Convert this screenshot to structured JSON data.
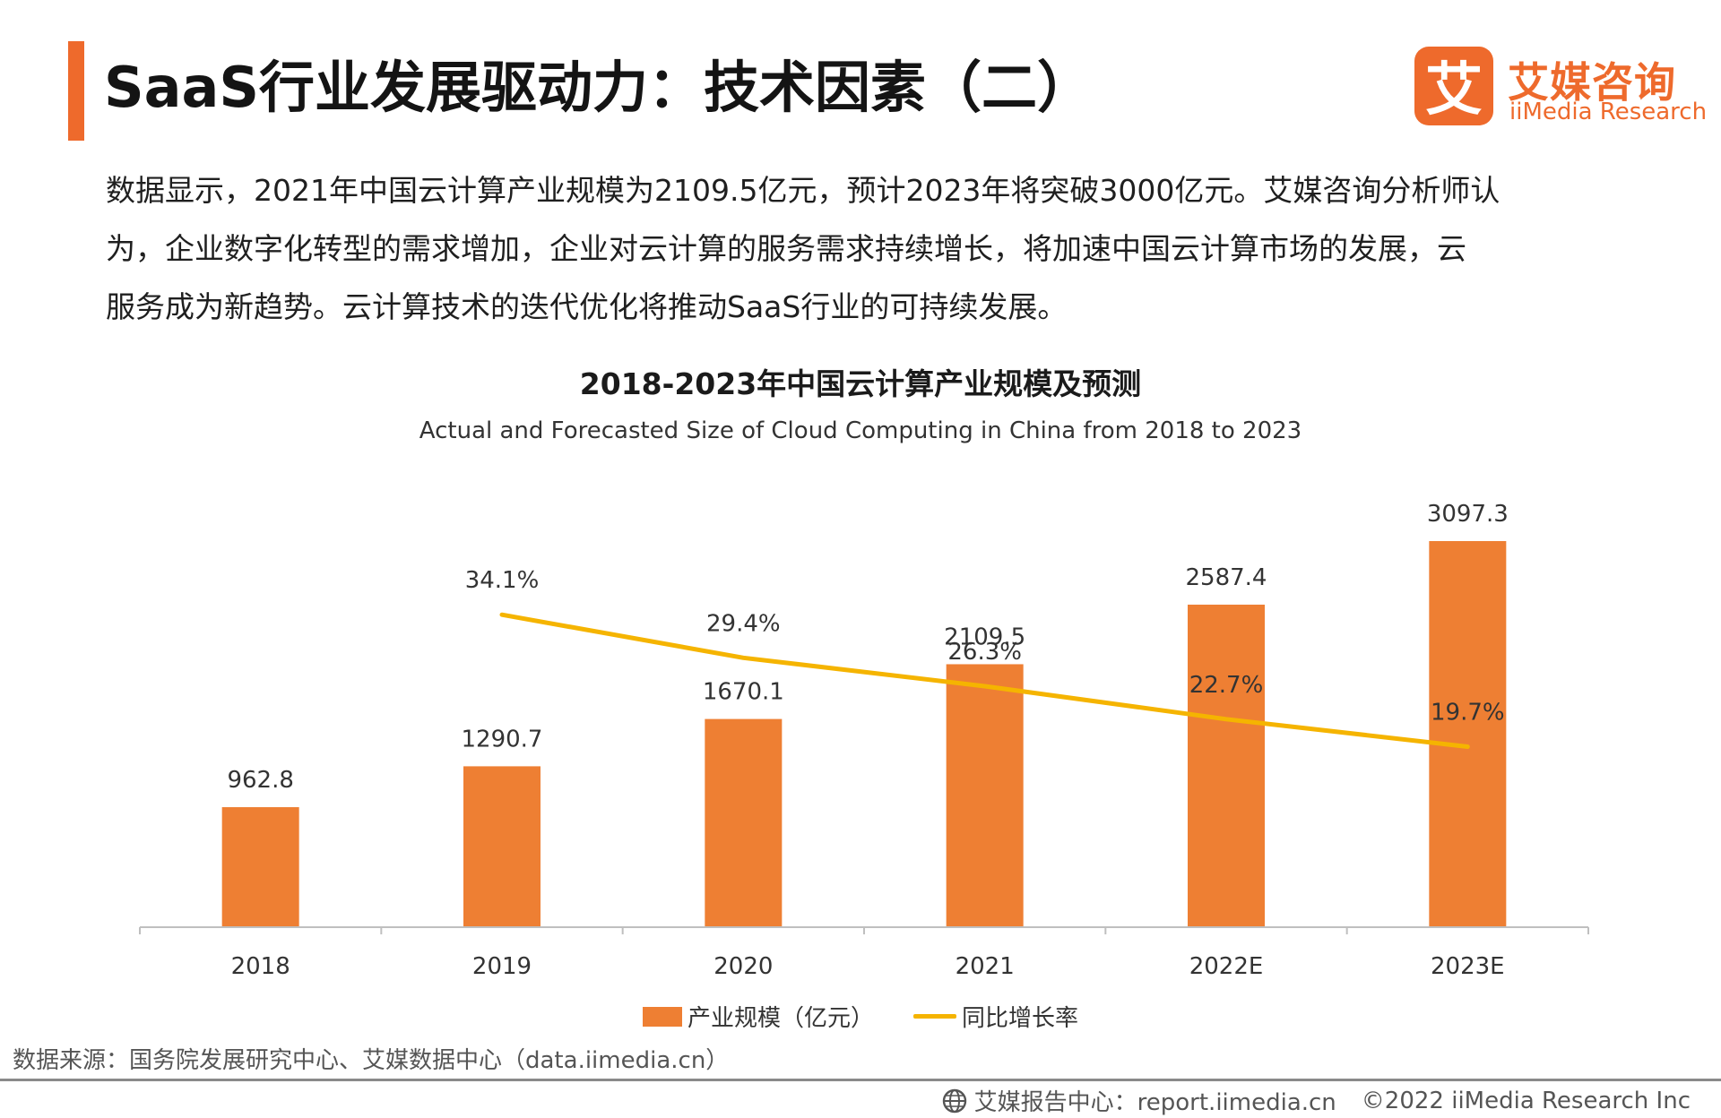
{
  "header": {
    "title": "SaaS行业发展驱动力：技术因素（二）",
    "logo": {
      "cn": "艾媒咨询",
      "en": "iiMedia Research",
      "mark": "艾"
    }
  },
  "intro": {
    "lines": [
      "数据显示，2021年中国云计算产业规模为2109.5亿元，预计2023年将突破3000亿元。艾媒咨询分析师认",
      "为，企业数字化转型的需求增加，企业对云计算的服务需求持续增长，将加速中国云计算市场的发展，云",
      "服务成为新趋势。云计算技术的迭代优化将推动SaaS行业的可持续发展。"
    ]
  },
  "chart_data": {
    "type": "bar",
    "title": "2018-2023年中国云计算产业规模及预测",
    "subtitle": "Actual and Forecasted Size of Cloud Computing in China from 2018 to 2023",
    "categories": [
      "2018",
      "2019",
      "2020",
      "2021",
      "2022E",
      "2023E"
    ],
    "series": [
      {
        "name": "产业规模（亿元）",
        "type": "bar",
        "values": [
          962.8,
          1290.7,
          1670.1,
          2109.5,
          2587.4,
          3097.3
        ],
        "labels": [
          "962.8",
          "1290.7",
          "1670.1",
          "2109.5",
          "2587.4",
          "3097.3"
        ],
        "color": "#ee7f33"
      },
      {
        "name": "同比增长率",
        "type": "line",
        "values": [
          null,
          34.1,
          29.4,
          26.3,
          22.7,
          19.7
        ],
        "labels": [
          "",
          "34.1%",
          "29.4%",
          "26.3%",
          "22.7%",
          "19.7%"
        ],
        "unit": "%",
        "color": "#f5b400"
      }
    ],
    "ylim": [
      0,
      3500
    ],
    "y2lim": [
      0,
      48
    ],
    "legend": "bottom-center",
    "grid": false
  },
  "footer": {
    "source": "数据来源：国务院发展研究中心、艾媒数据中心（data.iimedia.cn）",
    "report": "艾媒报告中心：report.iimedia.cn",
    "copyright": "©2022 iiMedia Research Inc"
  },
  "colors": {
    "accent": "#ee6a2c",
    "bar": "#ee7f33",
    "line": "#f5b400"
  }
}
